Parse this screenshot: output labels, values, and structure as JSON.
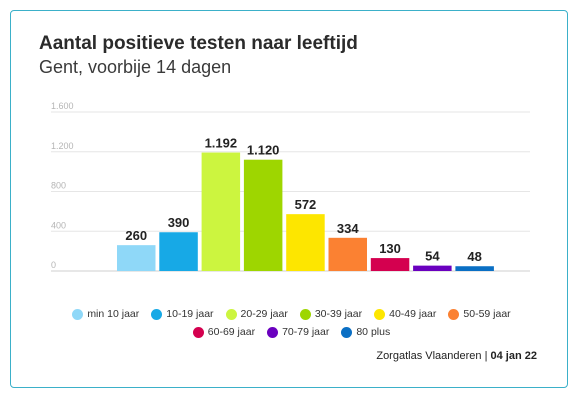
{
  "title": "Aantal positieve testen naar leeftijd",
  "subtitle": "Gent, voorbije 14 dagen",
  "source": {
    "name": "Zorgatlas Vlaanderen",
    "separator": "|",
    "date": "04 jan 22"
  },
  "chart_data": {
    "type": "bar",
    "title": "Aantal positieve testen naar leeftijd",
    "subtitle": "Gent, voorbije 14 dagen",
    "xlabel": "",
    "ylabel": "",
    "ylim": [
      0,
      1600
    ],
    "yticks": [
      0,
      400,
      800,
      1200,
      1600
    ],
    "ytick_labels": [
      "0",
      "400",
      "800",
      "1.200",
      "1.600"
    ],
    "grid": true,
    "legend_position": "bottom",
    "categories": [
      "min 10 jaar",
      "10-19 jaar",
      "20-29 jaar",
      "30-39 jaar",
      "40-49 jaar",
      "50-59 jaar",
      "60-69 jaar",
      "70-79 jaar",
      "80 plus"
    ],
    "values": [
      260,
      390,
      1192,
      1120,
      572,
      334,
      130,
      54,
      48
    ],
    "value_labels": [
      "260",
      "390",
      "1.192",
      "1.120",
      "572",
      "334",
      "130",
      "54",
      "48"
    ],
    "colors": [
      "#8fd8f8",
      "#17a9e6",
      "#ccf53f",
      "#9ed600",
      "#fde600",
      "#fb8132",
      "#d4004f",
      "#6a00bf",
      "#0a6fc4"
    ]
  }
}
